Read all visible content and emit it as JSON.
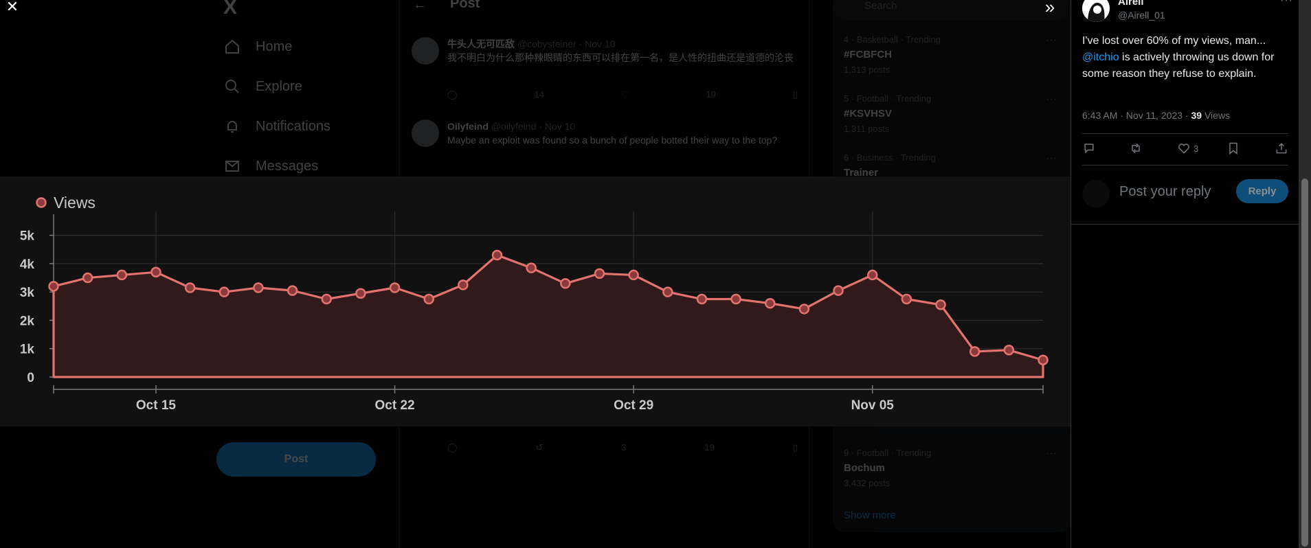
{
  "background": {
    "nav": {
      "logo": "X",
      "items": [
        {
          "icon": "home-icon",
          "label": "Home"
        },
        {
          "icon": "explore-icon",
          "label": "Explore"
        },
        {
          "icon": "bell-icon",
          "label": "Notifications"
        },
        {
          "icon": "mail-icon",
          "label": "Messages"
        }
      ],
      "post_button": "Post"
    },
    "center": {
      "back_icon": "arrow-left-icon",
      "title": "Post",
      "replies": [
        {
          "author": "牛头人无可匹敌",
          "handle": "@cobysteiner",
          "time": "· Nov 10",
          "text": "我不明白为什么那种辣眼睛的东西可以排在第一名，是人性的扭曲还是道德的沦丧"
        },
        {
          "author": "Oilyfeind",
          "handle": "@oilyfeind",
          "time": "· Nov 10",
          "text": "Maybe an exploit was found so a bunch of people botted their way to the top?"
        }
      ],
      "action_counts": {
        "reposts": "14",
        "likes": "3",
        "views": "19"
      }
    },
    "right": {
      "search_placeholder": "Search",
      "trends": [
        {
          "meta": "4 · Basketball · Trending",
          "name": "#FCBFCH",
          "count": "1,313 posts"
        },
        {
          "meta": "5 · Football · Trending",
          "name": "#KSVHSV",
          "count": "1,311 posts"
        },
        {
          "meta": "6 · Business · Trending",
          "name": "Trainer",
          "count": ""
        },
        {
          "meta": "9 · Football · Trending",
          "name": "Bochum",
          "count": "3,432 posts"
        }
      ],
      "show_more": "Show more"
    }
  },
  "overlay": {
    "close_icon": "close-icon",
    "expand_icon": "double-chevron-right-icon"
  },
  "chart_data": {
    "type": "area",
    "title": "",
    "legend": [
      "Views"
    ],
    "legend_position": "top-left",
    "colors": {
      "line": "#e2736f",
      "fill": "#331a1a",
      "marker_fill": "#8a3a3a"
    },
    "x_tick_labels": [
      "Oct 15",
      "Oct 22",
      "Oct 29",
      "Nov 05"
    ],
    "y_tick_labels": [
      "0",
      "1k",
      "2k",
      "3k",
      "4k",
      "5k"
    ],
    "ylim": [
      0,
      5500
    ],
    "grid": true,
    "x": [
      "Oct 12",
      "Oct 13",
      "Oct 14",
      "Oct 15",
      "Oct 16",
      "Oct 17",
      "Oct 18",
      "Oct 19",
      "Oct 20",
      "Oct 21",
      "Oct 22",
      "Oct 23",
      "Oct 24",
      "Oct 25",
      "Oct 26",
      "Oct 27",
      "Oct 28",
      "Oct 29",
      "Oct 30",
      "Oct 31",
      "Nov 01",
      "Nov 02",
      "Nov 03",
      "Nov 04",
      "Nov 05",
      "Nov 06",
      "Nov 07",
      "Nov 08",
      "Nov 09",
      "Nov 10"
    ],
    "series": [
      {
        "name": "Views",
        "values": [
          3200,
          3500,
          3600,
          3700,
          3150,
          3000,
          3150,
          3050,
          2750,
          2950,
          3150,
          2750,
          3250,
          4300,
          3850,
          3300,
          3650,
          3600,
          3000,
          2750,
          2750,
          2600,
          2400,
          3050,
          3600,
          2750,
          2550,
          900,
          950,
          600
        ]
      }
    ]
  },
  "tweet": {
    "author": "Airell",
    "handle": "@Airell_01",
    "more_icon": "more-dots-icon",
    "text_part1": "I've lost over 60% of my views, man... ",
    "mention": "@itchio",
    "text_part2": " is actively throwing us down for some reason they refuse to explain.",
    "timestamp": "6:43 AM · Nov 11, 2023 · ",
    "views_count": "39",
    "views_label": " Views",
    "actions": {
      "reply_icon": "reply-icon",
      "repost_icon": "repost-icon",
      "like_icon": "heart-icon",
      "like_count": "3",
      "bookmark_icon": "bookmark-icon",
      "share_icon": "share-icon"
    },
    "reply_box": {
      "placeholder": "Post your reply",
      "button": "Reply"
    }
  }
}
